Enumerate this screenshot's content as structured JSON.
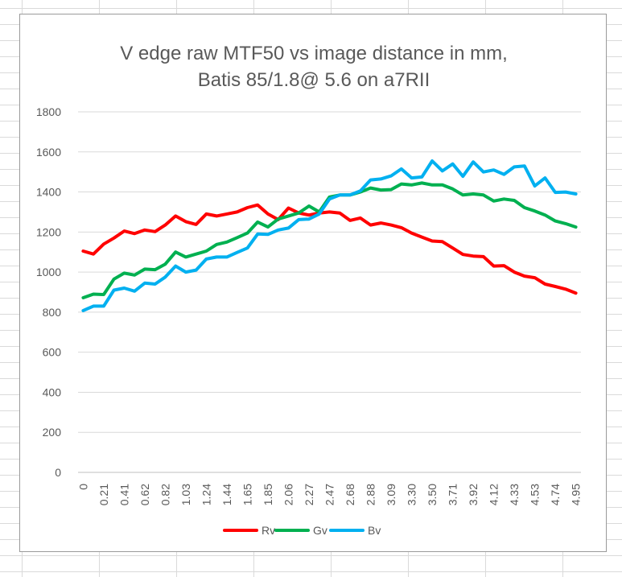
{
  "chart_data": {
    "type": "line",
    "title": [
      "V edge raw MTF50 vs image distance in mm,",
      "Batis 85/1.8@ 5.6 on a7RII"
    ],
    "xlabel": "",
    "ylabel": "",
    "ylim": [
      0,
      1800
    ],
    "yticks": [
      0,
      200,
      400,
      600,
      800,
      1000,
      1200,
      1400,
      1600,
      1800
    ],
    "x_tick_labels": [
      "0",
      "0.21",
      "0.41",
      "0.62",
      "0.82",
      "1.03",
      "1.24",
      "1.44",
      "1.65",
      "1.85",
      "2.06",
      "2.27",
      "2.47",
      "2.68",
      "2.88",
      "3.09",
      "3.30",
      "3.50",
      "3.71",
      "3.92",
      "4.12",
      "4.33",
      "4.53",
      "4.74",
      "4.95"
    ],
    "point_count": 49,
    "grid": "horizontal",
    "legend": "bottom",
    "series": [
      {
        "name": "Rv",
        "color": "#ff0000",
        "values": [
          1105,
          1090,
          1140,
          1170,
          1205,
          1192,
          1210,
          1202,
          1235,
          1280,
          1252,
          1238,
          1290,
          1280,
          1290,
          1300,
          1322,
          1335,
          1290,
          1262,
          1320,
          1295,
          1285,
          1295,
          1300,
          1295,
          1258,
          1270,
          1235,
          1245,
          1235,
          1222,
          1195,
          1175,
          1155,
          1152,
          1120,
          1088,
          1080,
          1077,
          1030,
          1032,
          1000,
          980,
          972,
          940,
          928,
          915,
          895
        ]
      },
      {
        "name": "Gv",
        "color": "#00b050",
        "values": [
          872,
          890,
          888,
          965,
          995,
          985,
          1015,
          1012,
          1040,
          1100,
          1075,
          1090,
          1105,
          1138,
          1150,
          1172,
          1195,
          1250,
          1225,
          1265,
          1280,
          1295,
          1330,
          1300,
          1375,
          1385,
          1385,
          1400,
          1420,
          1410,
          1412,
          1440,
          1435,
          1445,
          1435,
          1435,
          1415,
          1385,
          1390,
          1385,
          1355,
          1365,
          1358,
          1322,
          1305,
          1285,
          1255,
          1242,
          1225
        ]
      },
      {
        "name": "Bv",
        "color": "#00b0f0",
        "values": [
          808,
          830,
          830,
          910,
          920,
          905,
          945,
          940,
          975,
          1030,
          1000,
          1010,
          1065,
          1075,
          1075,
          1098,
          1120,
          1190,
          1188,
          1210,
          1220,
          1262,
          1265,
          1290,
          1365,
          1385,
          1385,
          1405,
          1460,
          1465,
          1480,
          1515,
          1470,
          1475,
          1555,
          1505,
          1540,
          1478,
          1550,
          1500,
          1510,
          1488,
          1525,
          1530,
          1430,
          1470,
          1398,
          1400,
          1390
        ]
      }
    ]
  }
}
